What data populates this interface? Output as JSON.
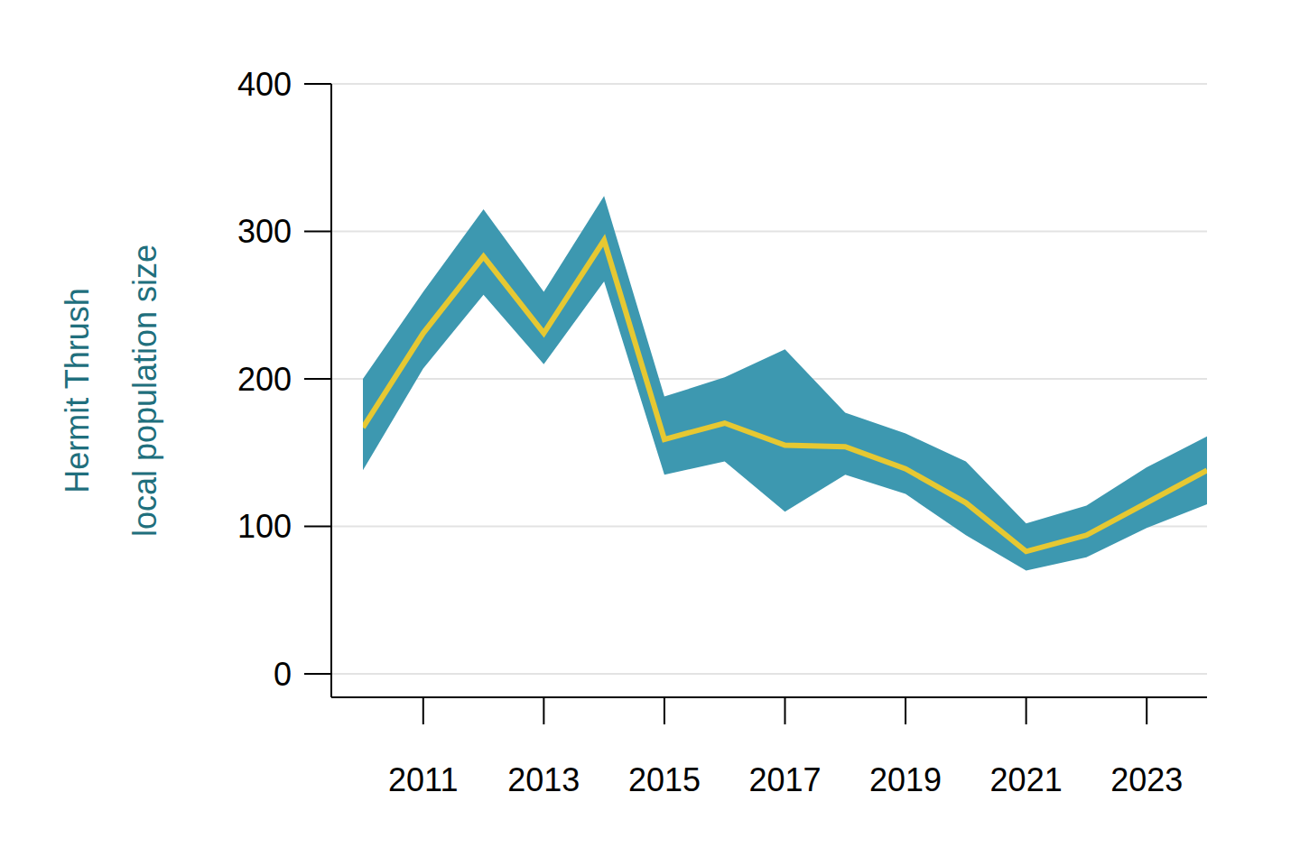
{
  "chart_data": {
    "type": "line",
    "ylabel": [
      "Hermit Thrush",
      "local population size"
    ],
    "x": [
      2010,
      2011,
      2012,
      2013,
      2014,
      2015,
      2016,
      2017,
      2018,
      2019,
      2020,
      2021,
      2022,
      2023,
      2024
    ],
    "values": [
      167,
      231,
      283,
      231,
      294,
      159,
      170,
      155,
      154,
      139,
      116,
      83,
      94,
      116,
      138
    ],
    "lower": [
      138,
      207,
      257,
      210,
      266,
      135,
      144,
      110,
      135,
      122,
      94,
      70,
      79,
      99,
      115
    ],
    "upper": [
      200,
      259,
      315,
      259,
      324,
      188,
      201,
      220,
      177,
      163,
      144,
      102,
      114,
      140,
      161
    ],
    "color": "#e6c832",
    "xlim": [
      2010,
      2024
    ],
    "xticks": [
      2011,
      2013,
      2015,
      2017,
      2019,
      2021,
      2023
    ],
    "ylim": [
      0,
      400
    ],
    "yticks": [
      0,
      100,
      200,
      300,
      400
    ],
    "grid": true
  }
}
